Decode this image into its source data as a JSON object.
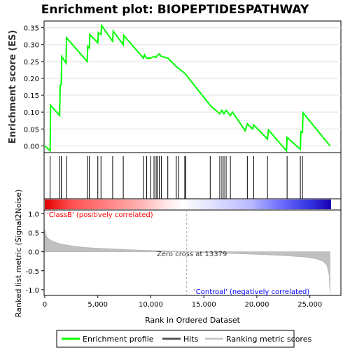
{
  "chart_data": {
    "type": "line",
    "title": "Enrichment plot: BIOPEPTIDESPATHWAY",
    "top_panel": {
      "ylabel": "Enrichment score (ES)",
      "ylim": [
        -0.02,
        0.37
      ],
      "yticks": [
        0.0,
        0.05,
        0.1,
        0.15,
        0.2,
        0.25,
        0.3,
        0.35
      ],
      "ytick_labels": [
        "0.00",
        "0.05",
        "0.10",
        "0.15",
        "0.20",
        "0.25",
        "0.30",
        "0.35"
      ],
      "series": [
        {
          "name": "Enrichment profile",
          "color": "#00ff00",
          "x": [
            0,
            500,
            550,
            1400,
            1450,
            1550,
            1600,
            2000,
            2050,
            4000,
            4050,
            4200,
            4250,
            5000,
            5050,
            5300,
            5350,
            6400,
            6450,
            7400,
            7450,
            9300,
            9400,
            9600,
            10000,
            10300,
            10500,
            10600,
            10800,
            11000,
            11600,
            12400,
            12600,
            13200,
            15600,
            16500,
            16700,
            16900,
            17100,
            17500,
            17700,
            18900,
            19100,
            19600,
            19700,
            21000,
            21100,
            22800,
            22850,
            24100,
            24150,
            24300,
            24350,
            26900
          ],
          "y": [
            0.0,
            -0.015,
            0.12,
            0.09,
            0.18,
            0.18,
            0.265,
            0.245,
            0.32,
            0.25,
            0.295,
            0.29,
            0.33,
            0.305,
            0.335,
            0.33,
            0.357,
            0.31,
            0.34,
            0.3,
            0.327,
            0.26,
            0.27,
            0.26,
            0.26,
            0.265,
            0.262,
            0.268,
            0.272,
            0.265,
            0.26,
            0.235,
            0.23,
            0.215,
            0.12,
            0.095,
            0.105,
            0.095,
            0.105,
            0.09,
            0.1,
            0.045,
            0.065,
            0.05,
            0.062,
            0.02,
            0.047,
            -0.015,
            0.025,
            -0.01,
            0.042,
            0.04,
            0.098,
            0.0
          ]
        }
      ]
    },
    "hits": [
      500,
      1400,
      1550,
      2050,
      4000,
      4200,
      5000,
      5300,
      6400,
      7400,
      9300,
      9600,
      10000,
      10300,
      10500,
      10600,
      10800,
      11000,
      11600,
      12400,
      12600,
      13200,
      13300,
      15600,
      16500,
      16700,
      16900,
      17100,
      17500,
      19100,
      19700,
      21000,
      22850,
      24100,
      24300
    ],
    "bottom_panel": {
      "ylabel": "Ranked list metric (Signal2Noise)",
      "xlabel": "Rank in Ordered Dataset",
      "xlim": [
        0,
        28000
      ],
      "ylim": [
        -1.15,
        1.1
      ],
      "xticks": [
        0,
        5000,
        10000,
        15000,
        20000,
        25000
      ],
      "xtick_labels": [
        "0",
        "5,000",
        "10,000",
        "15,000",
        "20,000",
        "25,000"
      ],
      "yticks": [
        -1.0,
        -0.5,
        0.0,
        0.5,
        1.0
      ],
      "ytick_labels": [
        "-1.0",
        "-0.5",
        "0.0",
        "0.5",
        "1.0"
      ],
      "metric_profile": {
        "x": [
          0,
          100,
          300,
          600,
          1000,
          1500,
          2000,
          3000,
          4000,
          6000,
          8000,
          10000,
          12000,
          13379,
          15000,
          17000,
          19000,
          21000,
          23000,
          24500,
          25500,
          26200,
          26600,
          26800,
          26900
        ],
        "y": [
          0.6,
          0.45,
          0.36,
          0.3,
          0.25,
          0.21,
          0.18,
          0.14,
          0.11,
          0.08,
          0.055,
          0.035,
          0.015,
          0.0,
          -0.02,
          -0.04,
          -0.06,
          -0.08,
          -0.11,
          -0.14,
          -0.18,
          -0.25,
          -0.35,
          -0.6,
          -1.1
        ]
      },
      "zero_cross_label": "Zero cross at 13379",
      "zero_cross": 13379,
      "pos_label": "'ClassB' (positively correlated)",
      "neg_label": "'Controal' (negatively correlated)"
    },
    "legend": [
      "Enrichment profile",
      "Hits",
      "Ranking metric scores"
    ],
    "colors": {
      "profile": "#00ff00",
      "hits": "#000000",
      "metric": "#c0c0c0",
      "pos_text": "#ff0000",
      "neg_text": "#0000ff"
    }
  }
}
